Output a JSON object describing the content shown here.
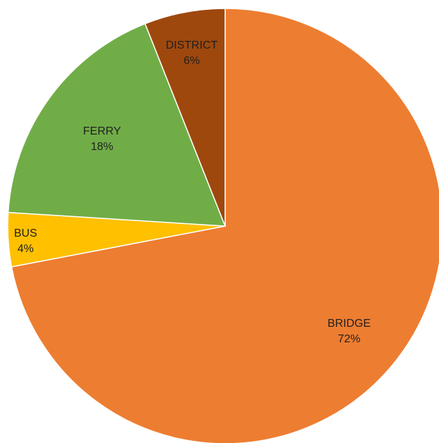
{
  "chart_data": {
    "type": "pie",
    "title": "",
    "categories": [
      "BRIDGE",
      "BUS",
      "FERRY",
      "DISTRICT"
    ],
    "values": [
      72,
      4,
      18,
      6
    ],
    "value_labels": [
      "72%",
      "4%",
      "18%",
      "6%"
    ],
    "colors": [
      "#ED7D31",
      "#FFC000",
      "#70AD47",
      "#9E480E"
    ],
    "start_angle": "12 o'clock",
    "direction": "clockwise",
    "legend": "none",
    "data_labels": "category name and percentage"
  }
}
